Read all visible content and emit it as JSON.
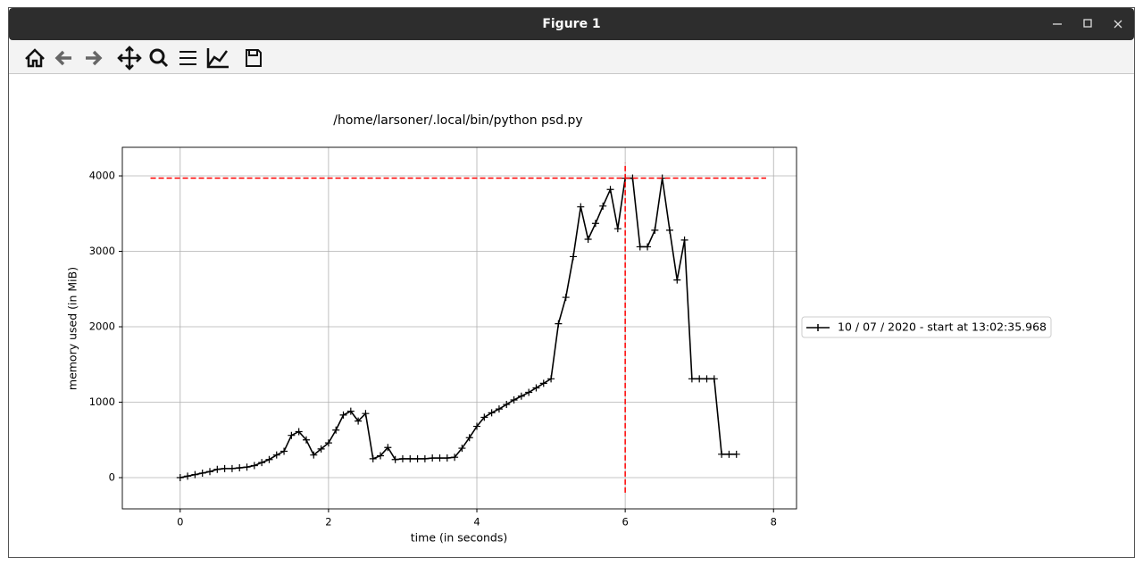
{
  "window": {
    "title": "Figure 1"
  },
  "chart_data": {
    "type": "line",
    "title": "/home/larsoner/.local/bin/python psd.py",
    "x_label": "time (in seconds)",
    "y_label": "memory used (in MiB)",
    "x": [
      0,
      0.1,
      0.2,
      0.3,
      0.4,
      0.5,
      0.6,
      0.7,
      0.8,
      0.9,
      1.0,
      1.1,
      1.2,
      1.3,
      1.4,
      1.5,
      1.6,
      1.7,
      1.8,
      1.9,
      2.0,
      2.1,
      2.2,
      2.3,
      2.4,
      2.5,
      2.6,
      2.7,
      2.8,
      2.9,
      3.0,
      3.1,
      3.2,
      3.3,
      3.4,
      3.5,
      3.6,
      3.7,
      3.8,
      3.9,
      4.0,
      4.1,
      4.2,
      4.3,
      4.4,
      4.5,
      4.6,
      4.7,
      4.8,
      4.9,
      5.0,
      5.1,
      5.2,
      5.3,
      5.4,
      5.5,
      5.6,
      5.7,
      5.8,
      5.9,
      6.0,
      6.1,
      6.2,
      6.3,
      6.4,
      6.5,
      6.6,
      6.7,
      6.8,
      6.9,
      7.0,
      7.1,
      7.2,
      7.3,
      7.4,
      7.5
    ],
    "series": [
      {
        "name": "10 / 07 / 2020 - start at 13:02:35.968",
        "color": "#000000",
        "values": [
          0,
          20,
          40,
          60,
          80,
          110,
          120,
          120,
          130,
          140,
          160,
          200,
          240,
          300,
          350,
          560,
          610,
          500,
          300,
          380,
          460,
          630,
          830,
          880,
          750,
          850,
          250,
          290,
          400,
          240,
          250,
          250,
          250,
          250,
          260,
          260,
          260,
          270,
          390,
          530,
          680,
          800,
          860,
          910,
          970,
          1030,
          1080,
          1130,
          1190,
          1250,
          1310,
          2040,
          2390,
          2930,
          3590,
          3160,
          3370,
          3600,
          3820,
          3300,
          3970,
          3970,
          3060,
          3060,
          3280,
          3970,
          3280,
          2620,
          3150,
          1310,
          1310,
          1310,
          1310,
          310,
          310,
          310
        ]
      }
    ],
    "max_line": {
      "y": 3970,
      "xmin": -0.4,
      "xmax": 7.9,
      "color": "#ff0000"
    },
    "peak_line": {
      "x": 6.0,
      "ymin": -200,
      "ymax": 4170,
      "color": "#ff0000"
    },
    "xlim": [
      -0.78,
      8.31
    ],
    "ylim": [
      -414,
      4379
    ],
    "xticks": [
      0,
      2,
      4,
      6,
      8
    ],
    "yticks": [
      0,
      1000,
      2000,
      3000,
      4000
    ],
    "grid": true,
    "legend": "outside right"
  }
}
